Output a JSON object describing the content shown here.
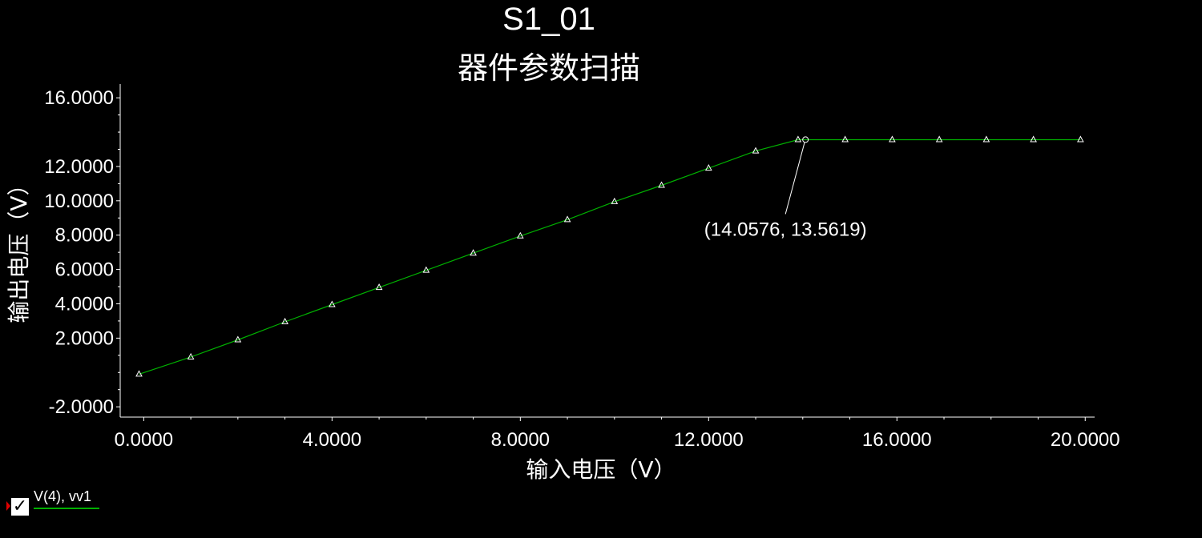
{
  "chart_data": {
    "type": "line",
    "title": "S1_01",
    "subtitle": "器件参数扫描",
    "xlabel": "输入电压（V）",
    "ylabel": "输出电压（V）",
    "xlim": [
      -0.5,
      20.2
    ],
    "ylim": [
      -2.6,
      16.8
    ],
    "xticks": [
      0,
      4,
      8,
      12,
      16,
      20
    ],
    "xtick_labels": [
      "0.0000",
      "4.0000",
      "8.0000",
      "12.0000",
      "16.0000",
      "20.0000"
    ],
    "yticks": [
      -2,
      2,
      4,
      6,
      8,
      10,
      12,
      16
    ],
    "ytick_labels": [
      "-2.0000",
      "2.0000",
      "4.0000",
      "6.0000",
      "8.0000",
      "10.0000",
      "12.0000",
      "16.0000"
    ],
    "grid": false,
    "legend_position": "bottom-left",
    "series": [
      {
        "name": "V(4), vv1",
        "color": "#00b000",
        "x": [
          -0.1,
          1.0,
          2.0,
          3.0,
          4.0,
          5.0,
          6.0,
          7.0,
          8.0,
          9.0,
          10.0,
          11.0,
          12.0,
          13.0,
          13.9,
          14.9,
          15.9,
          16.9,
          17.9,
          18.9,
          19.9
        ],
        "y": [
          -0.1,
          0.9,
          1.9,
          2.95,
          3.95,
          4.95,
          5.95,
          6.95,
          7.95,
          8.9,
          9.95,
          10.9,
          11.9,
          12.9,
          13.56,
          13.56,
          13.56,
          13.56,
          13.56,
          13.56,
          13.56
        ]
      }
    ],
    "annotation": {
      "label": "(14.0576, 13.5619)",
      "x": 14.0576,
      "y": 13.5619
    }
  },
  "colors": {
    "background": "#000000",
    "axis": "#ffffff",
    "series": "#00b000",
    "markers": "#ffffff",
    "legend_marker": "#e00000"
  }
}
